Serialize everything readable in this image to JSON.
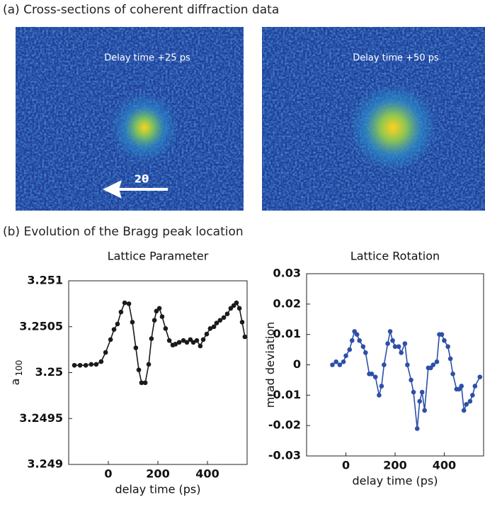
{
  "panel_a": {
    "title": "(a) Cross-sections of coherent diffraction data",
    "images": [
      {
        "label": "Delay time +25 ps"
      },
      {
        "label": "Delay time +50 ps"
      }
    ],
    "arrow_label": "2θ"
  },
  "panel_b": {
    "title": "(b) Evolution of the Bragg peak location"
  },
  "chart_data": [
    {
      "type": "line",
      "title": "Lattice Parameter",
      "xlabel": "delay time (ps)",
      "ylabel": {
        "text": "a",
        "subscript": "100"
      },
      "xlim": [
        -160,
        560
      ],
      "xticks": [
        0,
        200,
        400
      ],
      "ylim": [
        3.249,
        3.251
      ],
      "yticks": [
        3.249,
        3.2495,
        3.25,
        3.2505,
        3.251
      ],
      "series": [
        {
          "color": "#1a1a1a",
          "x": [
            -137,
            -114,
            -91,
            -69,
            -49,
            -29,
            -11,
            9,
            23,
            37,
            51,
            66,
            83,
            97,
            111,
            123,
            134,
            149,
            163,
            174,
            186,
            194,
            206,
            217,
            231,
            246,
            260,
            271,
            286,
            303,
            317,
            331,
            343,
            357,
            371,
            383,
            397,
            411,
            426,
            437,
            451,
            466,
            480,
            494,
            506,
            517,
            529,
            540,
            551
          ],
          "values": [
            3.25008,
            3.25008,
            3.25008,
            3.25009,
            3.25009,
            3.25012,
            3.25022,
            3.25036,
            3.25047,
            3.25053,
            3.25066,
            3.25076,
            3.25075,
            3.25055,
            3.25027,
            3.25003,
            3.24989,
            3.24989,
            3.25009,
            3.25037,
            3.25057,
            3.25067,
            3.2507,
            3.25061,
            3.25048,
            3.25035,
            3.2503,
            3.25031,
            3.25033,
            3.25035,
            3.25033,
            3.25036,
            3.25033,
            3.25035,
            3.25029,
            3.25036,
            3.25042,
            3.25048,
            3.2505,
            3.25054,
            3.25057,
            3.2506,
            3.25064,
            3.2507,
            3.25073,
            3.25076,
            3.2507,
            3.25055,
            3.25039
          ]
        }
      ]
    },
    {
      "type": "line",
      "title": "Lattice Rotation",
      "xlabel": "delay time (ps)",
      "ylabel": {
        "text": "mrad deviation"
      },
      "xlim": [
        -160,
        560
      ],
      "xticks": [
        0,
        200,
        400
      ],
      "ylim": [
        -0.03,
        0.03
      ],
      "yticks": [
        -0.03,
        -0.02,
        -0.01,
        0,
        0.01,
        0.02,
        0.03
      ],
      "series": [
        {
          "color": "#2e4fa8",
          "x": [
            -55,
            -40,
            -25,
            -10,
            0,
            15,
            25,
            35,
            45,
            55,
            70,
            80,
            95,
            105,
            120,
            135,
            145,
            155,
            170,
            180,
            190,
            200,
            215,
            225,
            240,
            250,
            265,
            275,
            290,
            300,
            310,
            320,
            335,
            345,
            355,
            370,
            380,
            390,
            400,
            415,
            425,
            435,
            450,
            460,
            470,
            480,
            490,
            505,
            515,
            525,
            545
          ],
          "values": [
            0,
            0.001,
            0,
            0.001,
            0.003,
            0.005,
            0.008,
            0.011,
            0.01,
            0.008,
            0.006,
            0.004,
            -0.003,
            -0.003,
            -0.004,
            -0.01,
            -0.007,
            0,
            0.007,
            0.011,
            0.008,
            0.006,
            0.006,
            0.004,
            0.007,
            0,
            -0.005,
            -0.009,
            -0.021,
            -0.012,
            -0.009,
            -0.015,
            -0.001,
            -0.001,
            0,
            0.001,
            0.01,
            0.01,
            0.008,
            0.006,
            0.002,
            -0.003,
            -0.008,
            -0.008,
            -0.007,
            -0.015,
            -0.013,
            -0.012,
            -0.01,
            -0.007,
            -0.004
          ]
        }
      ]
    }
  ]
}
